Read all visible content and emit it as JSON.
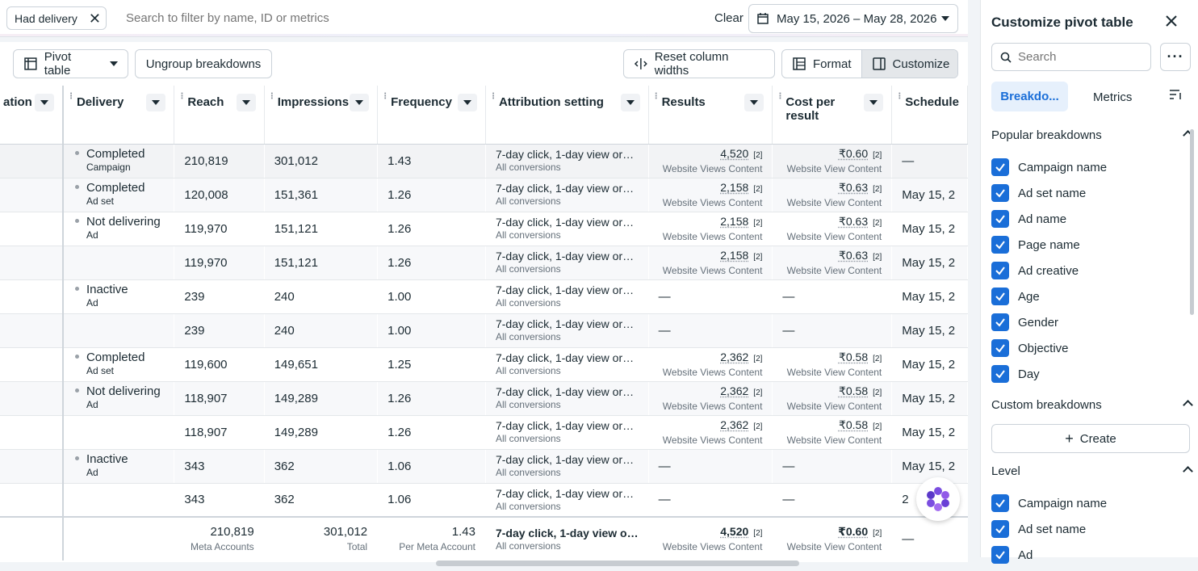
{
  "filter_bar": {
    "chip_label": "Had delivery",
    "search_placeholder": "Search to filter by name, ID or metrics",
    "clear_label": "Clear",
    "date_range": "May 15, 2026 – May 28, 2026"
  },
  "toolbar": {
    "pivot_label": "Pivot table",
    "ungroup_label": "Ungroup breakdowns",
    "reset_label": "Reset column widths",
    "format_label": "Format",
    "customize_label": "Customize"
  },
  "table": {
    "headers": [
      "ation",
      "Delivery",
      "Reach",
      "Impressions",
      "Frequency",
      "Attribution setting",
      "Results",
      "Cost per result",
      "Schedule"
    ],
    "rows": [
      {
        "status": "Completed",
        "level": "Campaign",
        "reach": "210,819",
        "impressions": "301,012",
        "frequency": "1.43",
        "attr": "7-day click, 1-day view or…",
        "attr_sub": "All conversions",
        "results": "4,520",
        "results_fn": "[2]",
        "results_sub": "Website Views Content",
        "cost": "₹0.60",
        "cost_fn": "[2]",
        "cost_sub": "Website View Content",
        "schedule": "—"
      },
      {
        "status": "Completed",
        "level": "Ad set",
        "reach": "120,008",
        "impressions": "151,361",
        "frequency": "1.26",
        "attr": "7-day click, 1-day view or…",
        "attr_sub": "All conversions",
        "results": "2,158",
        "results_fn": "[2]",
        "results_sub": "Website Views Content",
        "cost": "₹0.63",
        "cost_fn": "[2]",
        "cost_sub": "Website View Content",
        "schedule": "May 15, 2"
      },
      {
        "status": "Not delivering",
        "level": "Ad",
        "reach": "119,970",
        "impressions": "151,121",
        "frequency": "1.26",
        "attr": "7-day click, 1-day view or…",
        "attr_sub": "All conversions",
        "results": "2,158",
        "results_fn": "[2]",
        "results_sub": "Website Views Content",
        "cost": "₹0.63",
        "cost_fn": "[2]",
        "cost_sub": "Website View Content",
        "schedule": "May 15, 2"
      },
      {
        "status": "",
        "level": "",
        "reach": "119,970",
        "impressions": "151,121",
        "frequency": "1.26",
        "attr": "7-day click, 1-day view or…",
        "attr_sub": "All conversions",
        "results": "2,158",
        "results_fn": "[2]",
        "results_sub": "Website Views Content",
        "cost": "₹0.63",
        "cost_fn": "[2]",
        "cost_sub": "Website View Content",
        "schedule": "May 15, 2"
      },
      {
        "status": "Inactive",
        "level": "Ad",
        "reach": "239",
        "impressions": "240",
        "frequency": "1.00",
        "attr": "7-day click, 1-day view or…",
        "attr_sub": "All conversions",
        "results": "—",
        "results_fn": "",
        "results_sub": "",
        "cost": "—",
        "cost_fn": "",
        "cost_sub": "",
        "schedule": "May 15, 2"
      },
      {
        "status": "",
        "level": "",
        "reach": "239",
        "impressions": "240",
        "frequency": "1.00",
        "attr": "7-day click, 1-day view or…",
        "attr_sub": "All conversions",
        "results": "—",
        "results_fn": "",
        "results_sub": "",
        "cost": "—",
        "cost_fn": "",
        "cost_sub": "",
        "schedule": "May 15, 2"
      },
      {
        "status": "Completed",
        "level": "Ad set",
        "reach": "119,600",
        "impressions": "149,651",
        "frequency": "1.25",
        "attr": "7-day click, 1-day view or…",
        "attr_sub": "All conversions",
        "results": "2,362",
        "results_fn": "[2]",
        "results_sub": "Website Views Content",
        "cost": "₹0.58",
        "cost_fn": "[2]",
        "cost_sub": "Website View Content",
        "schedule": "May 15, 2"
      },
      {
        "status": "Not delivering",
        "level": "Ad",
        "reach": "118,907",
        "impressions": "149,289",
        "frequency": "1.26",
        "attr": "7-day click, 1-day view or…",
        "attr_sub": "All conversions",
        "results": "2,362",
        "results_fn": "[2]",
        "results_sub": "Website Views Content",
        "cost": "₹0.58",
        "cost_fn": "[2]",
        "cost_sub": "Website View Content",
        "schedule": "May 15, 2"
      },
      {
        "status": "",
        "level": "",
        "reach": "118,907",
        "impressions": "149,289",
        "frequency": "1.26",
        "attr": "7-day click, 1-day view or…",
        "attr_sub": "All conversions",
        "results": "2,362",
        "results_fn": "[2]",
        "results_sub": "Website Views Content",
        "cost": "₹0.58",
        "cost_fn": "[2]",
        "cost_sub": "Website View Content",
        "schedule": "May 15, 2"
      },
      {
        "status": "Inactive",
        "level": "Ad",
        "reach": "343",
        "impressions": "362",
        "frequency": "1.06",
        "attr": "7-day click, 1-day view or…",
        "attr_sub": "All conversions",
        "results": "—",
        "results_fn": "",
        "results_sub": "",
        "cost": "—",
        "cost_fn": "",
        "cost_sub": "",
        "schedule": "May 15, 2"
      },
      {
        "status": "",
        "level": "",
        "reach": "343",
        "impressions": "362",
        "frequency": "1.06",
        "attr": "7-day click, 1-day view or…",
        "attr_sub": "All conversions",
        "results": "—",
        "results_fn": "",
        "results_sub": "",
        "cost": "—",
        "cost_fn": "",
        "cost_sub": "",
        "schedule": "2"
      }
    ],
    "total": {
      "reach": "210,819",
      "reach_sub": "Meta Accounts",
      "impressions": "301,012",
      "impressions_sub": "Total",
      "frequency": "1.43",
      "frequency_sub": "Per Meta Account",
      "attr": "7-day click, 1-day view o…",
      "attr_sub": "All conversions",
      "results": "4,520",
      "results_fn": "[2]",
      "results_sub": "Website Views Content",
      "cost": "₹0.60",
      "cost_fn": "[2]",
      "cost_sub": "Website View Content",
      "schedule": "—"
    }
  },
  "panel": {
    "title": "Customize pivot table",
    "search_placeholder": "Search",
    "tab_breakdowns": "Breakdo...",
    "tab_metrics": "Metrics",
    "popular_heading": "Popular breakdowns",
    "popular_items": [
      "Campaign name",
      "Ad set name",
      "Ad name",
      "Page name",
      "Ad creative",
      "Age",
      "Gender",
      "Objective",
      "Day"
    ],
    "custom_heading": "Custom breakdowns",
    "create_label": "Create",
    "level_heading": "Level",
    "level_items": [
      "Campaign name",
      "Ad set name",
      "Ad"
    ]
  },
  "colors": {
    "accent": "#1a6ed8",
    "active_tab_bg": "#e6f0fc"
  }
}
